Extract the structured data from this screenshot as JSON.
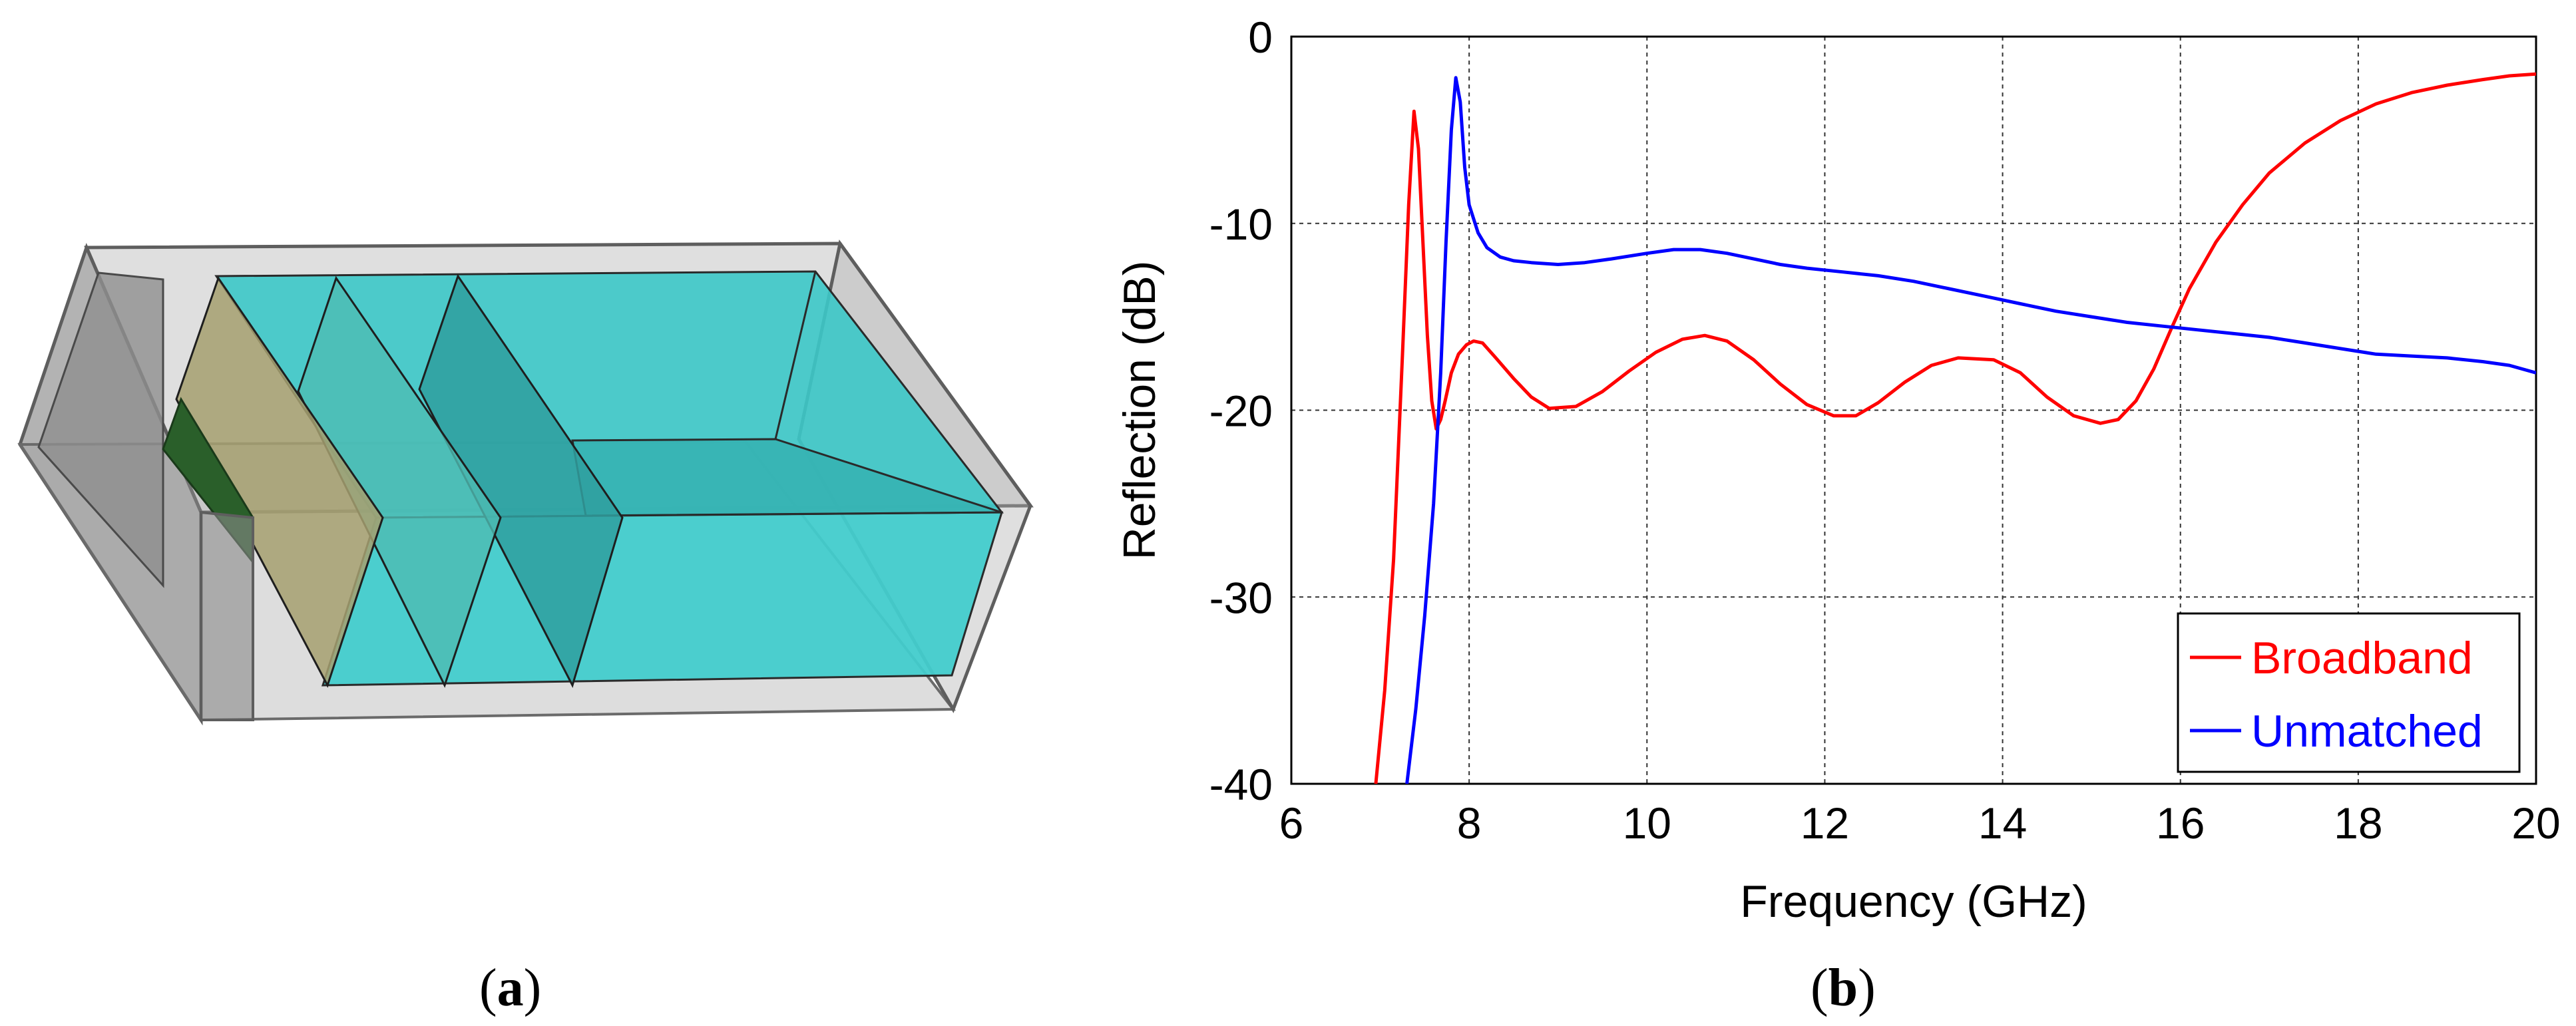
{
  "captions": {
    "a": "a",
    "b": "b"
  },
  "colors": {
    "broadband": "#ff0000",
    "unmatched": "#0000ff",
    "box_fill": "#b8b8b8",
    "box_edge": "#6a6a6a",
    "dielectric": "#3cc8c8",
    "dielectric_dark": "#2f9f9f",
    "slab": "#a6a070",
    "port": "#2a5f2a"
  },
  "chart_data": {
    "type": "line",
    "title": "",
    "xlabel": "Frequency (GHz)",
    "ylabel": "Reflection (dB)",
    "xlim": [
      6,
      20
    ],
    "ylim": [
      -40,
      0
    ],
    "xticks": [
      6,
      8,
      10,
      12,
      14,
      16,
      18,
      20
    ],
    "yticks": [
      0,
      -10,
      -20,
      -30,
      -40
    ],
    "grid": true,
    "legend_position": "bottom-right",
    "series": [
      {
        "name": "Broadband",
        "color_key": "broadband",
        "x": [
          6.95,
          7.05,
          7.15,
          7.25,
          7.32,
          7.38,
          7.43,
          7.48,
          7.53,
          7.58,
          7.63,
          7.68,
          7.73,
          7.8,
          7.88,
          7.97,
          8.05,
          8.15,
          8.3,
          8.5,
          8.7,
          8.9,
          9.2,
          9.5,
          9.8,
          10.1,
          10.4,
          10.65,
          10.9,
          11.2,
          11.5,
          11.8,
          12.1,
          12.35,
          12.6,
          12.9,
          13.2,
          13.5,
          13.9,
          14.2,
          14.5,
          14.8,
          15.1,
          15.3,
          15.5,
          15.7,
          15.9,
          16.1,
          16.4,
          16.7,
          17.0,
          17.4,
          17.8,
          18.2,
          18.6,
          19.0,
          19.4,
          19.7,
          20.0
        ],
        "y": [
          -40.0,
          -35.0,
          -28.0,
          -17.0,
          -9.0,
          -4.0,
          -6.0,
          -11.0,
          -16.0,
          -19.5,
          -21.0,
          -20.5,
          -19.5,
          -18.0,
          -17.0,
          -16.5,
          -16.3,
          -16.4,
          -17.2,
          -18.3,
          -19.3,
          -19.9,
          -19.8,
          -19.0,
          -17.9,
          -16.9,
          -16.2,
          -16.0,
          -16.3,
          -17.3,
          -18.6,
          -19.7,
          -20.3,
          -20.3,
          -19.6,
          -18.5,
          -17.6,
          -17.2,
          -17.3,
          -18.0,
          -19.3,
          -20.3,
          -20.7,
          -20.5,
          -19.5,
          -17.8,
          -15.6,
          -13.5,
          -11.0,
          -9.0,
          -7.3,
          -5.7,
          -4.5,
          -3.6,
          -3.0,
          -2.6,
          -2.3,
          -2.1,
          -2.0
        ]
      },
      {
        "name": "Unmatched",
        "color_key": "unmatched",
        "x": [
          7.3,
          7.4,
          7.5,
          7.6,
          7.68,
          7.74,
          7.8,
          7.85,
          7.9,
          7.95,
          8.0,
          8.1,
          8.2,
          8.35,
          8.5,
          8.7,
          9.0,
          9.3,
          9.6,
          10.0,
          10.3,
          10.6,
          10.9,
          11.2,
          11.5,
          11.8,
          12.2,
          12.6,
          13.0,
          13.4,
          13.8,
          14.2,
          14.6,
          15.0,
          15.4,
          15.8,
          16.2,
          16.6,
          17.0,
          17.4,
          17.8,
          18.2,
          18.6,
          19.0,
          19.4,
          19.7,
          20.0
        ],
        "y": [
          -40.0,
          -36.0,
          -31.0,
          -25.0,
          -18.0,
          -11.0,
          -5.0,
          -2.2,
          -3.5,
          -7.0,
          -9.0,
          -10.5,
          -11.3,
          -11.8,
          -12.0,
          -12.1,
          -12.2,
          -12.1,
          -11.9,
          -11.6,
          -11.4,
          -11.4,
          -11.6,
          -11.9,
          -12.2,
          -12.4,
          -12.6,
          -12.8,
          -13.1,
          -13.5,
          -13.9,
          -14.3,
          -14.7,
          -15.0,
          -15.3,
          -15.5,
          -15.7,
          -15.9,
          -16.1,
          -16.4,
          -16.7,
          -17.0,
          -17.1,
          -17.2,
          -17.4,
          -17.6,
          -18.0
        ]
      }
    ]
  }
}
